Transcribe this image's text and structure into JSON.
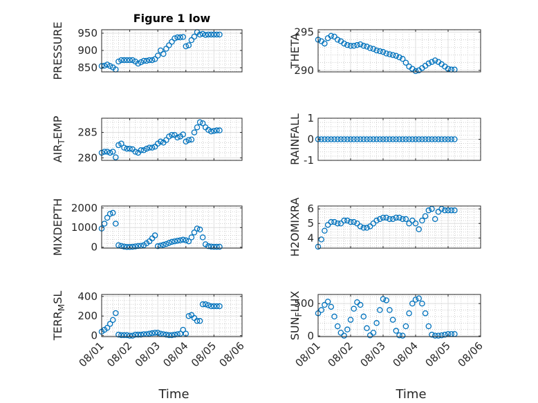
{
  "chart_data": [
    {
      "type": "scatter",
      "title": "Figure 1 low",
      "ylabel": "PRESSURE",
      "xlim": [
        "08/01",
        "08/06"
      ],
      "ylim": [
        838,
        960
      ],
      "yticks": [
        850,
        900,
        950
      ],
      "xticks": [
        "08/01",
        "08/02",
        "08/03",
        "08/04",
        "08/05",
        "08/06"
      ],
      "grid": "on",
      "series": [
        {
          "x": [
            0.0,
            0.1,
            0.2,
            0.3,
            0.4,
            0.5,
            0.6,
            0.7,
            0.8,
            0.9,
            1.0,
            1.1,
            1.2,
            1.3,
            1.4,
            1.5,
            1.6,
            1.7,
            1.8,
            1.9,
            2.0,
            2.1,
            2.2,
            2.3,
            2.4,
            2.5,
            2.6,
            2.7,
            2.8,
            2.9,
            3.0,
            3.1,
            3.2,
            3.3,
            3.4,
            3.5,
            3.6,
            3.7,
            3.8,
            3.9,
            4.0,
            4.1,
            4.2
          ],
          "y": [
            855,
            856,
            859,
            855,
            851,
            845,
            868,
            872,
            872,
            872,
            872,
            872,
            868,
            862,
            866,
            870,
            870,
            872,
            872,
            875,
            885,
            900,
            890,
            905,
            915,
            925,
            935,
            938,
            938,
            939,
            912,
            915,
            930,
            940,
            953,
            946,
            948,
            945,
            946,
            946,
            946,
            946,
            946
          ]
        }
      ]
    },
    {
      "type": "scatter",
      "title": "",
      "ylabel": "THETA",
      "xlim": [
        "08/01",
        "08/06"
      ],
      "ylim": [
        289.8,
        295.3
      ],
      "yticks": [
        290,
        295
      ],
      "xticks": [
        "08/01",
        "08/02",
        "08/03",
        "08/04",
        "08/05",
        "08/06"
      ],
      "grid": "on",
      "series": [
        {
          "x": [
            0.0,
            0.1,
            0.2,
            0.3,
            0.4,
            0.5,
            0.6,
            0.7,
            0.8,
            0.9,
            1.0,
            1.1,
            1.2,
            1.3,
            1.4,
            1.5,
            1.6,
            1.7,
            1.8,
            1.9,
            2.0,
            2.1,
            2.2,
            2.3,
            2.4,
            2.5,
            2.6,
            2.7,
            2.8,
            2.9,
            3.0,
            3.1,
            3.2,
            3.3,
            3.4,
            3.5,
            3.6,
            3.7,
            3.8,
            3.9,
            4.0,
            4.1,
            4.2
          ],
          "y": [
            294.0,
            293.8,
            293.5,
            294.2,
            294.5,
            294.4,
            294.0,
            293.8,
            293.5,
            293.3,
            293.2,
            293.2,
            293.3,
            293.4,
            293.2,
            293.1,
            292.9,
            292.8,
            292.6,
            292.5,
            292.4,
            292.2,
            292.1,
            292.0,
            291.9,
            291.7,
            291.5,
            291.0,
            290.5,
            290.2,
            289.9,
            290.0,
            290.3,
            290.6,
            290.9,
            291.1,
            291.3,
            291.1,
            290.8,
            290.5,
            290.2,
            290.1,
            290.1
          ]
        }
      ]
    },
    {
      "type": "scatter",
      "title": "",
      "ylabel": "AIR_TEMP",
      "xlim": [
        "08/01",
        "08/06"
      ],
      "ylim": [
        279.5,
        287.8
      ],
      "yticks": [
        280,
        285
      ],
      "xticks": [
        "08/01",
        "08/02",
        "08/03",
        "08/04",
        "08/05",
        "08/06"
      ],
      "grid": "on",
      "series": [
        {
          "x": [
            0.0,
            0.1,
            0.2,
            0.3,
            0.4,
            0.5,
            0.6,
            0.7,
            0.8,
            0.9,
            1.0,
            1.1,
            1.2,
            1.3,
            1.4,
            1.5,
            1.6,
            1.7,
            1.8,
            1.9,
            2.0,
            2.1,
            2.2,
            2.3,
            2.4,
            2.5,
            2.6,
            2.7,
            2.8,
            2.9,
            3.0,
            3.1,
            3.2,
            3.3,
            3.4,
            3.5,
            3.6,
            3.7,
            3.8,
            3.9,
            4.0,
            4.1,
            4.2
          ],
          "y": [
            281.0,
            281.2,
            281.2,
            281.0,
            281.2,
            280.1,
            282.5,
            282.8,
            282.0,
            281.8,
            281.8,
            281.7,
            281.2,
            281.0,
            281.5,
            281.5,
            281.8,
            282.0,
            282.0,
            282.2,
            282.8,
            283.2,
            283.0,
            283.5,
            284.2,
            284.5,
            284.5,
            284.0,
            284.2,
            284.6,
            283.2,
            283.5,
            283.6,
            285.0,
            286.0,
            287.0,
            286.8,
            286.0,
            285.5,
            285.2,
            285.3,
            285.4,
            285.4
          ]
        }
      ]
    },
    {
      "type": "scatter",
      "title": "",
      "ylabel": "RAINFALL",
      "xlim": [
        "08/01",
        "08/06"
      ],
      "ylim": [
        -1,
        1
      ],
      "yticks": [
        -1,
        0,
        1
      ],
      "xticks": [
        "08/01",
        "08/02",
        "08/03",
        "08/04",
        "08/05",
        "08/06"
      ],
      "grid": "on",
      "series": [
        {
          "x": [
            0.0,
            0.1,
            0.2,
            0.3,
            0.4,
            0.5,
            0.6,
            0.7,
            0.8,
            0.9,
            1.0,
            1.1,
            1.2,
            1.3,
            1.4,
            1.5,
            1.6,
            1.7,
            1.8,
            1.9,
            2.0,
            2.1,
            2.2,
            2.3,
            2.4,
            2.5,
            2.6,
            2.7,
            2.8,
            2.9,
            3.0,
            3.1,
            3.2,
            3.3,
            3.4,
            3.5,
            3.6,
            3.7,
            3.8,
            3.9,
            4.0,
            4.1,
            4.2
          ],
          "y": [
            0,
            0,
            0,
            0,
            0,
            0,
            0,
            0,
            0,
            0,
            0,
            0,
            0,
            0,
            0,
            0,
            0,
            0,
            0,
            0,
            0,
            0,
            0,
            0,
            0,
            0,
            0,
            0,
            0,
            0,
            0,
            0,
            0,
            0,
            0,
            0,
            0,
            0,
            0,
            0,
            0,
            0,
            0
          ]
        }
      ]
    },
    {
      "type": "scatter",
      "title": "",
      "ylabel": "MIXDEPTH",
      "xlim": [
        "08/01",
        "08/06"
      ],
      "ylim": [
        -50,
        2100
      ],
      "yticks": [
        0,
        1000,
        2000
      ],
      "xticks": [
        "08/01",
        "08/02",
        "08/03",
        "08/04",
        "08/05",
        "08/06"
      ],
      "grid": "on",
      "series": [
        {
          "x": [
            0.0,
            0.1,
            0.2,
            0.3,
            0.4,
            0.5,
            0.6,
            0.7,
            0.8,
            0.9,
            1.0,
            1.1,
            1.2,
            1.3,
            1.4,
            1.5,
            1.6,
            1.7,
            1.8,
            1.9,
            2.0,
            2.1,
            2.2,
            2.3,
            2.4,
            2.5,
            2.6,
            2.7,
            2.8,
            2.9,
            3.0,
            3.1,
            3.2,
            3.3,
            3.4,
            3.5,
            3.6,
            3.7,
            3.8,
            3.9,
            4.0,
            4.1,
            4.2
          ],
          "y": [
            950,
            1200,
            1500,
            1700,
            1750,
            1200,
            100,
            60,
            30,
            10,
            10,
            20,
            40,
            60,
            70,
            100,
            200,
            300,
            450,
            600,
            50,
            80,
            120,
            160,
            220,
            270,
            300,
            330,
            350,
            380,
            350,
            300,
            500,
            750,
            950,
            900,
            500,
            150,
            50,
            30,
            20,
            20,
            20
          ]
        }
      ]
    },
    {
      "type": "scatter",
      "title": "",
      "ylabel": "H2OMIXRA",
      "xlim": [
        "08/01",
        "08/06"
      ],
      "ylim": [
        3.3,
        6.2
      ],
      "yticks": [
        4,
        5,
        6
      ],
      "xticks": [
        "08/01",
        "08/02",
        "08/03",
        "08/04",
        "08/05",
        "08/06"
      ],
      "grid": "on",
      "series": [
        {
          "x": [
            0.0,
            0.1,
            0.2,
            0.3,
            0.4,
            0.5,
            0.6,
            0.7,
            0.8,
            0.9,
            1.0,
            1.1,
            1.2,
            1.3,
            1.4,
            1.5,
            1.6,
            1.7,
            1.8,
            1.9,
            2.0,
            2.1,
            2.2,
            2.3,
            2.4,
            2.5,
            2.6,
            2.7,
            2.8,
            2.9,
            3.0,
            3.1,
            3.2,
            3.3,
            3.4,
            3.5,
            3.6,
            3.7,
            3.8,
            3.9,
            4.0,
            4.1,
            4.2
          ],
          "y": [
            3.4,
            3.9,
            4.5,
            4.9,
            5.1,
            5.1,
            5.0,
            5.0,
            5.2,
            5.2,
            5.1,
            5.1,
            5.0,
            4.8,
            4.7,
            4.7,
            4.8,
            5.0,
            5.2,
            5.3,
            5.4,
            5.4,
            5.3,
            5.3,
            5.4,
            5.4,
            5.3,
            5.3,
            5.0,
            5.2,
            5.0,
            4.6,
            5.2,
            5.5,
            5.9,
            6.0,
            5.3,
            5.8,
            6.0,
            5.9,
            5.9,
            5.9,
            5.9
          ]
        }
      ]
    },
    {
      "type": "scatter",
      "title": "",
      "ylabel": "TERR_MSL",
      "xlim": [
        "08/01",
        "08/06"
      ],
      "ylim": [
        -10,
        420
      ],
      "yticks": [
        0,
        200,
        400
      ],
      "xticks": [
        "08/01",
        "08/02",
        "08/03",
        "08/04",
        "08/05",
        "08/06"
      ],
      "grid": "on",
      "series": [
        {
          "x": [
            0.0,
            0.1,
            0.2,
            0.3,
            0.4,
            0.5,
            0.6,
            0.7,
            0.8,
            0.9,
            1.0,
            1.1,
            1.2,
            1.3,
            1.4,
            1.5,
            1.6,
            1.7,
            1.8,
            1.9,
            2.0,
            2.1,
            2.2,
            2.3,
            2.4,
            2.5,
            2.6,
            2.7,
            2.8,
            2.9,
            3.0,
            3.1,
            3.2,
            3.3,
            3.4,
            3.5,
            3.6,
            3.7,
            3.8,
            3.9,
            4.0,
            4.1,
            4.2
          ],
          "y": [
            40,
            60,
            80,
            120,
            160,
            230,
            10,
            5,
            5,
            5,
            0,
            0,
            10,
            10,
            10,
            15,
            15,
            20,
            25,
            30,
            30,
            20,
            15,
            10,
            5,
            5,
            10,
            15,
            20,
            60,
            20,
            200,
            210,
            180,
            150,
            150,
            320,
            320,
            310,
            300,
            300,
            300,
            300
          ]
        }
      ]
    },
    {
      "type": "scatter",
      "title": "",
      "ylabel": "SUN_FLUX",
      "xlim": [
        "08/01",
        "08/06"
      ],
      "ylim": [
        -10,
        640
      ],
      "yticks": [
        0,
        500
      ],
      "xticks": [
        "08/01",
        "08/02",
        "08/03",
        "08/04",
        "08/05",
        "08/06"
      ],
      "grid": "on",
      "series": [
        {
          "x": [
            0.0,
            0.1,
            0.2,
            0.3,
            0.4,
            0.5,
            0.6,
            0.7,
            0.8,
            0.9,
            1.0,
            1.1,
            1.2,
            1.3,
            1.4,
            1.5,
            1.6,
            1.7,
            1.8,
            1.9,
            2.0,
            2.1,
            2.2,
            2.3,
            2.4,
            2.5,
            2.6,
            2.7,
            2.8,
            2.9,
            3.0,
            3.1,
            3.2,
            3.3,
            3.4,
            3.5,
            3.6,
            3.7,
            3.8,
            3.9,
            4.0,
            4.1,
            4.2
          ],
          "y": [
            350,
            400,
            480,
            530,
            450,
            300,
            150,
            50,
            5,
            100,
            250,
            420,
            520,
            480,
            300,
            120,
            10,
            50,
            200,
            400,
            570,
            550,
            400,
            250,
            80,
            10,
            5,
            150,
            350,
            500,
            560,
            580,
            500,
            350,
            150,
            20,
            5,
            5,
            10,
            20,
            30,
            30,
            30
          ]
        }
      ]
    }
  ],
  "xlabel": "Time",
  "marker_color": "#0072BD"
}
